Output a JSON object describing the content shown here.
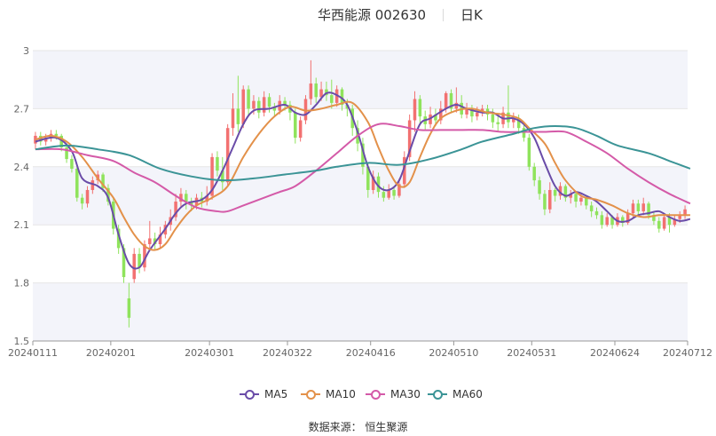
{
  "header": {
    "title": "华西能源 002630",
    "period": "日K"
  },
  "source_text": "数据来源： 恒生聚源",
  "chart_data": {
    "type": "candlestick",
    "title": "华西能源 002630",
    "period_label": "日K",
    "y_ticks": [
      "1.5",
      "1.8",
      "2.1",
      "2.4",
      "2.7",
      "3"
    ],
    "ylim": [
      1.5,
      3.0
    ],
    "x_ticks": [
      "20240111",
      "20240201",
      "20240301",
      "20240322",
      "20240416",
      "20240510",
      "20240531",
      "20240624",
      "20240712"
    ],
    "x_tick_index": [
      0,
      15,
      34,
      49,
      65,
      81,
      96,
      112,
      126
    ],
    "up_color": "#f27171",
    "down_color": "#8fe35c",
    "candles": [
      [
        2.52,
        2.56,
        2.49,
        2.58
      ],
      [
        2.56,
        2.53,
        2.51,
        2.58
      ],
      [
        2.53,
        2.55,
        2.51,
        2.57
      ],
      [
        2.55,
        2.57,
        2.53,
        2.59
      ],
      [
        2.57,
        2.56,
        2.54,
        2.59
      ],
      [
        2.56,
        2.5,
        2.48,
        2.57
      ],
      [
        2.5,
        2.44,
        2.42,
        2.52
      ],
      [
        2.44,
        2.39,
        2.37,
        2.46
      ],
      [
        2.39,
        2.24,
        2.22,
        2.4
      ],
      [
        2.24,
        2.21,
        2.18,
        2.26
      ],
      [
        2.21,
        2.28,
        2.19,
        2.3
      ],
      [
        2.28,
        2.33,
        2.26,
        2.35
      ],
      [
        2.33,
        2.36,
        2.31,
        2.38
      ],
      [
        2.36,
        2.29,
        2.27,
        2.37
      ],
      [
        2.29,
        2.22,
        2.2,
        2.31
      ],
      [
        2.22,
        2.08,
        2.05,
        2.24
      ],
      [
        2.08,
        1.98,
        1.95,
        2.1
      ],
      [
        1.98,
        1.83,
        1.8,
        2.0
      ],
      [
        1.72,
        1.62,
        1.57,
        1.8
      ],
      [
        1.82,
        1.95,
        1.8,
        1.98
      ],
      [
        1.95,
        1.88,
        1.85,
        1.98
      ],
      [
        1.88,
        2.0,
        1.86,
        2.02
      ],
      [
        2.0,
        2.03,
        1.97,
        2.12
      ],
      [
        2.03,
        2.0,
        1.97,
        2.06
      ],
      [
        2.0,
        2.05,
        1.98,
        2.09
      ],
      [
        2.05,
        2.1,
        2.03,
        2.12
      ],
      [
        2.1,
        2.14,
        2.07,
        2.18
      ],
      [
        2.14,
        2.22,
        2.12,
        2.26
      ],
      [
        2.22,
        2.26,
        2.19,
        2.29
      ],
      [
        2.26,
        2.22,
        2.18,
        2.28
      ],
      [
        2.22,
        2.2,
        2.17,
        2.24
      ],
      [
        2.2,
        2.24,
        2.18,
        2.26
      ],
      [
        2.24,
        2.22,
        2.19,
        2.27
      ],
      [
        2.22,
        2.25,
        2.2,
        2.3
      ],
      [
        2.25,
        2.45,
        2.23,
        2.47
      ],
      [
        2.45,
        2.38,
        2.35,
        2.48
      ],
      [
        2.38,
        2.32,
        2.28,
        2.45
      ],
      [
        2.32,
        2.6,
        2.3,
        2.62
      ],
      [
        2.6,
        2.7,
        2.56,
        2.78
      ],
      [
        2.7,
        2.62,
        2.58,
        2.87
      ],
      [
        2.62,
        2.8,
        2.6,
        2.82
      ],
      [
        2.8,
        2.7,
        2.66,
        2.82
      ],
      [
        2.7,
        2.74,
        2.67,
        2.77
      ],
      [
        2.74,
        2.68,
        2.65,
        2.76
      ],
      [
        2.68,
        2.76,
        2.66,
        2.79
      ],
      [
        2.76,
        2.71,
        2.68,
        2.78
      ],
      [
        2.71,
        2.69,
        2.66,
        2.73
      ],
      [
        2.69,
        2.74,
        2.67,
        2.77
      ],
      [
        2.74,
        2.72,
        2.69,
        2.76
      ],
      [
        2.72,
        2.68,
        2.64,
        2.74
      ],
      [
        2.68,
        2.55,
        2.52,
        2.7
      ],
      [
        2.55,
        2.64,
        2.53,
        2.66
      ],
      [
        2.64,
        2.75,
        2.62,
        2.77
      ],
      [
        2.75,
        2.83,
        2.72,
        2.95
      ],
      [
        2.83,
        2.76,
        2.73,
        2.86
      ],
      [
        2.76,
        2.8,
        2.74,
        2.84
      ],
      [
        2.8,
        2.77,
        2.74,
        2.84
      ],
      [
        2.77,
        2.73,
        2.7,
        2.85
      ],
      [
        2.73,
        2.8,
        2.71,
        2.82
      ],
      [
        2.8,
        2.72,
        2.69,
        2.81
      ],
      [
        2.72,
        2.7,
        2.66,
        2.75
      ],
      [
        2.7,
        2.6,
        2.56,
        2.72
      ],
      [
        2.6,
        2.52,
        2.48,
        2.64
      ],
      [
        2.52,
        2.4,
        2.36,
        2.55
      ],
      [
        2.4,
        2.28,
        2.24,
        2.42
      ],
      [
        2.28,
        2.35,
        2.26,
        2.38
      ],
      [
        2.35,
        2.27,
        2.24,
        2.37
      ],
      [
        2.27,
        2.24,
        2.22,
        2.3
      ],
      [
        2.24,
        2.28,
        2.23,
        2.31
      ],
      [
        2.28,
        2.25,
        2.23,
        2.3
      ],
      [
        2.25,
        2.31,
        2.24,
        2.34
      ],
      [
        2.31,
        2.45,
        2.29,
        2.48
      ],
      [
        2.45,
        2.64,
        2.43,
        2.67
      ],
      [
        2.64,
        2.75,
        2.58,
        2.79
      ],
      [
        2.75,
        2.66,
        2.62,
        2.77
      ],
      [
        2.66,
        2.62,
        2.59,
        2.69
      ],
      [
        2.62,
        2.67,
        2.6,
        2.71
      ],
      [
        2.67,
        2.64,
        2.61,
        2.7
      ],
      [
        2.64,
        2.7,
        2.62,
        2.74
      ],
      [
        2.7,
        2.78,
        2.68,
        2.79
      ],
      [
        2.78,
        2.7,
        2.68,
        2.8
      ],
      [
        2.7,
        2.73,
        2.68,
        2.81
      ],
      [
        2.73,
        2.67,
        2.65,
        2.77
      ],
      [
        2.67,
        2.7,
        2.65,
        2.73
      ],
      [
        2.7,
        2.66,
        2.63,
        2.72
      ],
      [
        2.66,
        2.68,
        2.64,
        2.71
      ],
      [
        2.68,
        2.7,
        2.66,
        2.72
      ],
      [
        2.7,
        2.67,
        2.64,
        2.72
      ],
      [
        2.67,
        2.63,
        2.6,
        2.7
      ],
      [
        2.63,
        2.62,
        2.58,
        2.66
      ],
      [
        2.62,
        2.68,
        2.6,
        2.71
      ],
      [
        2.68,
        2.63,
        2.6,
        2.82
      ],
      [
        2.63,
        2.65,
        2.6,
        2.68
      ],
      [
        2.65,
        2.6,
        2.57,
        2.67
      ],
      [
        2.6,
        2.55,
        2.53,
        2.62
      ],
      [
        2.55,
        2.4,
        2.38,
        2.57
      ],
      [
        2.4,
        2.33,
        2.3,
        2.42
      ],
      [
        2.33,
        2.26,
        2.23,
        2.35
      ],
      [
        2.26,
        2.18,
        2.15,
        2.28
      ],
      [
        2.18,
        2.28,
        2.16,
        2.32
      ],
      [
        2.28,
        2.25,
        2.22,
        2.29
      ],
      [
        2.25,
        2.3,
        2.23,
        2.32
      ],
      [
        2.3,
        2.24,
        2.22,
        2.31
      ],
      [
        2.24,
        2.26,
        2.21,
        2.28
      ],
      [
        2.26,
        2.22,
        2.19,
        2.27
      ],
      [
        2.22,
        2.24,
        2.2,
        2.26
      ],
      [
        2.24,
        2.2,
        2.18,
        2.25
      ],
      [
        2.2,
        2.17,
        2.14,
        2.22
      ],
      [
        2.17,
        2.15,
        2.13,
        2.19
      ],
      [
        2.15,
        2.1,
        2.08,
        2.17
      ],
      [
        2.1,
        2.14,
        2.09,
        2.16
      ],
      [
        2.14,
        2.1,
        2.08,
        2.15
      ],
      [
        2.1,
        2.14,
        2.09,
        2.16
      ],
      [
        2.14,
        2.11,
        2.09,
        2.15
      ],
      [
        2.11,
        2.16,
        2.1,
        2.18
      ],
      [
        2.16,
        2.21,
        2.14,
        2.23
      ],
      [
        2.21,
        2.17,
        2.15,
        2.23
      ],
      [
        2.17,
        2.21,
        2.15,
        2.24
      ],
      [
        2.21,
        2.15,
        2.13,
        2.22
      ],
      [
        2.15,
        2.12,
        2.1,
        2.17
      ],
      [
        2.12,
        2.08,
        2.06,
        2.14
      ],
      [
        2.08,
        2.14,
        2.07,
        2.16
      ],
      [
        2.14,
        2.1,
        2.06,
        2.16
      ],
      [
        2.1,
        2.13,
        2.09,
        2.15
      ],
      [
        2.13,
        2.15,
        2.11,
        2.17
      ],
      [
        2.15,
        2.18,
        2.13,
        2.2
      ]
    ],
    "series": [
      {
        "name": "MA5",
        "color": "#6a4ca8",
        "points": [
          [
            0,
            2.53
          ],
          [
            4,
            2.55
          ],
          [
            7,
            2.48
          ],
          [
            9,
            2.34
          ],
          [
            12,
            2.3
          ],
          [
            14,
            2.24
          ],
          [
            16,
            2.05
          ],
          [
            18,
            1.9
          ],
          [
            20,
            1.88
          ],
          [
            22,
            1.97
          ],
          [
            25,
            2.08
          ],
          [
            27,
            2.16
          ],
          [
            29,
            2.21
          ],
          [
            32,
            2.23
          ],
          [
            34,
            2.28
          ],
          [
            36,
            2.38
          ],
          [
            38,
            2.5
          ],
          [
            40,
            2.62
          ],
          [
            42,
            2.69
          ],
          [
            45,
            2.7
          ],
          [
            48,
            2.72
          ],
          [
            50,
            2.68
          ],
          [
            52,
            2.67
          ],
          [
            54,
            2.72
          ],
          [
            56,
            2.78
          ],
          [
            58,
            2.77
          ],
          [
            60,
            2.72
          ],
          [
            62,
            2.58
          ],
          [
            64,
            2.4
          ],
          [
            66,
            2.3
          ],
          [
            68,
            2.28
          ],
          [
            70,
            2.33
          ],
          [
            72,
            2.48
          ],
          [
            74,
            2.62
          ],
          [
            76,
            2.65
          ],
          [
            79,
            2.7
          ],
          [
            81,
            2.72
          ],
          [
            83,
            2.7
          ],
          [
            86,
            2.68
          ],
          [
            88,
            2.68
          ],
          [
            90,
            2.65
          ],
          [
            92,
            2.65
          ],
          [
            94,
            2.62
          ],
          [
            96,
            2.55
          ],
          [
            98,
            2.42
          ],
          [
            100,
            2.3
          ],
          [
            102,
            2.25
          ],
          [
            104,
            2.27
          ],
          [
            106,
            2.25
          ],
          [
            108,
            2.22
          ],
          [
            110,
            2.17
          ],
          [
            112,
            2.12
          ],
          [
            114,
            2.12
          ],
          [
            116,
            2.15
          ],
          [
            118,
            2.16
          ],
          [
            120,
            2.17
          ],
          [
            122,
            2.14
          ],
          [
            124,
            2.12
          ],
          [
            126,
            2.13
          ]
        ]
      },
      {
        "name": "MA10",
        "color": "#e3914a",
        "points": [
          [
            0,
            2.54
          ],
          [
            3,
            2.56
          ],
          [
            6,
            2.53
          ],
          [
            9,
            2.45
          ],
          [
            12,
            2.34
          ],
          [
            15,
            2.24
          ],
          [
            17,
            2.14
          ],
          [
            19,
            2.05
          ],
          [
            21,
            1.99
          ],
          [
            23,
            1.97
          ],
          [
            25,
            2.0
          ],
          [
            27,
            2.08
          ],
          [
            29,
            2.15
          ],
          [
            31,
            2.2
          ],
          [
            34,
            2.24
          ],
          [
            37,
            2.3
          ],
          [
            40,
            2.45
          ],
          [
            43,
            2.57
          ],
          [
            46,
            2.66
          ],
          [
            49,
            2.71
          ],
          [
            52,
            2.69
          ],
          [
            55,
            2.7
          ],
          [
            58,
            2.72
          ],
          [
            61,
            2.73
          ],
          [
            64,
            2.63
          ],
          [
            66,
            2.5
          ],
          [
            68,
            2.38
          ],
          [
            70,
            2.3
          ],
          [
            72,
            2.32
          ],
          [
            74,
            2.45
          ],
          [
            76,
            2.57
          ],
          [
            78,
            2.65
          ],
          [
            81,
            2.69
          ],
          [
            84,
            2.7
          ],
          [
            87,
            2.68
          ],
          [
            90,
            2.67
          ],
          [
            93,
            2.65
          ],
          [
            95,
            2.6
          ],
          [
            98,
            2.52
          ],
          [
            100,
            2.42
          ],
          [
            102,
            2.33
          ],
          [
            105,
            2.25
          ],
          [
            108,
            2.23
          ],
          [
            111,
            2.2
          ],
          [
            114,
            2.16
          ],
          [
            117,
            2.14
          ],
          [
            120,
            2.15
          ],
          [
            123,
            2.15
          ],
          [
            126,
            2.15
          ]
        ]
      },
      {
        "name": "MA30",
        "color": "#d45aa8",
        "points": [
          [
            0,
            2.49
          ],
          [
            5,
            2.49
          ],
          [
            10,
            2.46
          ],
          [
            15,
            2.43
          ],
          [
            19,
            2.37
          ],
          [
            23,
            2.32
          ],
          [
            27,
            2.25
          ],
          [
            31,
            2.19
          ],
          [
            35,
            2.17
          ],
          [
            37,
            2.17
          ],
          [
            40,
            2.2
          ],
          [
            44,
            2.24
          ],
          [
            47,
            2.27
          ],
          [
            50,
            2.3
          ],
          [
            54,
            2.38
          ],
          [
            58,
            2.47
          ],
          [
            62,
            2.56
          ],
          [
            66,
            2.62
          ],
          [
            70,
            2.61
          ],
          [
            74,
            2.59
          ],
          [
            78,
            2.59
          ],
          [
            82,
            2.59
          ],
          [
            86,
            2.59
          ],
          [
            90,
            2.58
          ],
          [
            94,
            2.58
          ],
          [
            98,
            2.58
          ],
          [
            102,
            2.58
          ],
          [
            106,
            2.53
          ],
          [
            110,
            2.47
          ],
          [
            114,
            2.39
          ],
          [
            118,
            2.32
          ],
          [
            122,
            2.26
          ],
          [
            126,
            2.21
          ]
        ]
      },
      {
        "name": "MA60",
        "color": "#3b9496",
        "points": [
          [
            0,
            2.49
          ],
          [
            6,
            2.51
          ],
          [
            12,
            2.49
          ],
          [
            18,
            2.46
          ],
          [
            24,
            2.39
          ],
          [
            30,
            2.35
          ],
          [
            36,
            2.33
          ],
          [
            42,
            2.34
          ],
          [
            48,
            2.36
          ],
          [
            54,
            2.38
          ],
          [
            58,
            2.4
          ],
          [
            64,
            2.42
          ],
          [
            70,
            2.41
          ],
          [
            76,
            2.44
          ],
          [
            82,
            2.49
          ],
          [
            86,
            2.53
          ],
          [
            92,
            2.57
          ],
          [
            96,
            2.6
          ],
          [
            100,
            2.61
          ],
          [
            104,
            2.6
          ],
          [
            108,
            2.56
          ],
          [
            112,
            2.51
          ],
          [
            118,
            2.47
          ],
          [
            122,
            2.43
          ],
          [
            126,
            2.39
          ]
        ]
      }
    ]
  }
}
